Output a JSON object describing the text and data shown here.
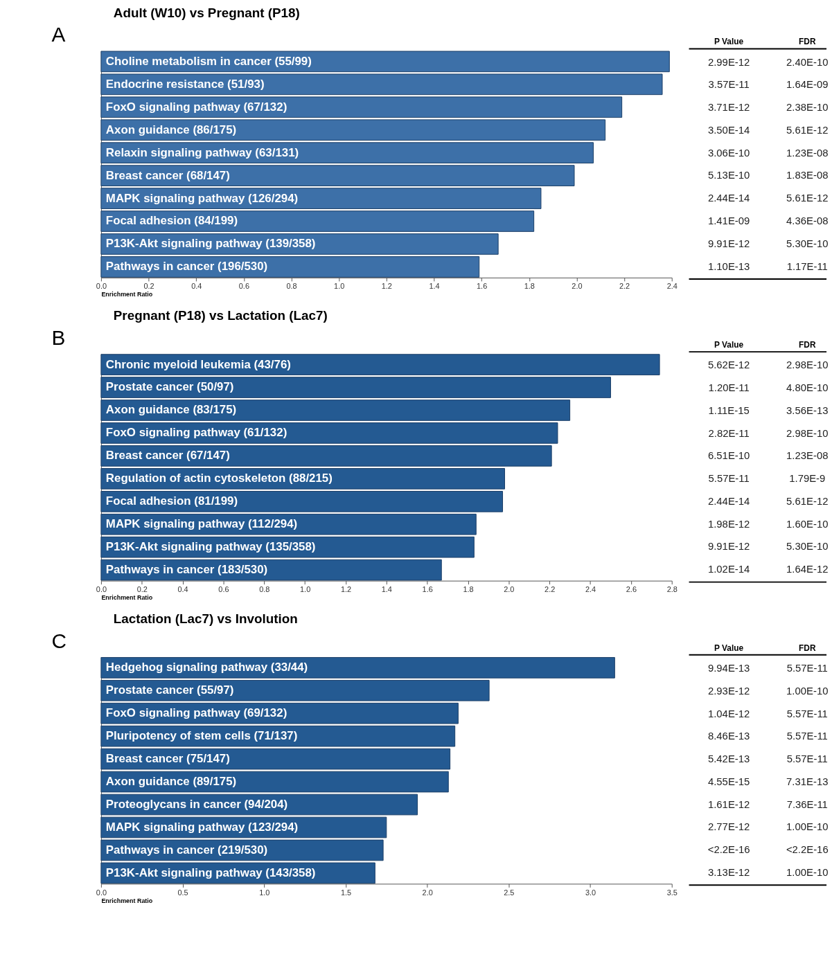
{
  "chart_data": [
    {
      "type": "bar",
      "orientation": "horizontal",
      "title": "Adult (W10) vs Pregnant (P18)",
      "xlabel": "Enrichment Ratio",
      "color": "#3d70a8",
      "tick_labels": "x",
      "grid": false,
      "categories": [
        "Choline metabolism in cancer (55/99)",
        "Endocrine resistance (51/93)",
        "FoxO signaling pathway (67/132)",
        "Axon guidance (86/175)",
        "Relaxin signaling pathway (63/131)",
        "Breast cancer (68/147)",
        "MAPK signaling pathway (126/294)",
        "Focal adhesion (84/199)",
        "P13K-Akt signaling pathway (139/358)",
        "Pathways in cancer (196/530)"
      ],
      "values": [
        2.39,
        2.36,
        2.19,
        2.12,
        2.07,
        1.99,
        1.85,
        1.82,
        1.67,
        1.59
      ],
      "xlim": [
        0,
        2.4
      ],
      "xticks": [
        {
          "value": 0,
          "label": "0.0"
        },
        {
          "value": 0.2,
          "label": "0.2"
        },
        {
          "value": 0.4,
          "label": "0.4"
        },
        {
          "value": 0.6,
          "label": "0.6"
        },
        {
          "value": 0.8,
          "label": "0.8"
        },
        {
          "value": 1,
          "label": "1.0"
        },
        {
          "value": 1.2,
          "label": "1.2"
        },
        {
          "value": 1.4,
          "label": "1.4"
        },
        {
          "value": 1.6,
          "label": "1.6"
        },
        {
          "value": 1.8,
          "label": "1.8"
        },
        {
          "value": 2,
          "label": "2.0"
        },
        {
          "value": 2.2,
          "label": "2.2"
        },
        {
          "value": 2.4,
          "label": "2.4"
        }
      ],
      "annotations": [
        "A",
        "P Value",
        "FDR",
        "2.99E-12",
        "2.40E-10",
        "3.57E-11",
        "1.64E-09",
        "3.71E-12",
        "2.38E-10",
        "3.50E-14",
        "5.61E-12",
        "3.06E-10",
        "1.23E-08",
        "5.13E-10",
        "1.83E-08",
        "2.44E-14",
        "5.61E-12",
        "1.41E-09",
        "4.36E-08",
        "9.91E-12",
        "5.30E-10",
        "1.10E-13",
        "1.17E-11"
      ]
    },
    {
      "type": "bar",
      "orientation": "horizontal",
      "title": "Pregnant (P18) vs Lactation (Lac7)",
      "xlabel": "Enrichment Ratio",
      "color": "#245a92",
      "tick_labels": "x",
      "grid": false,
      "categories": [
        "Chronic myeloid leukemia (43/76)",
        "Prostate cancer (50/97)",
        "Axon guidance (83/175)",
        "FoxO signaling pathway (61/132)",
        "Breast cancer (67/147)",
        "Regulation of actin cytoskeleton (88/215)",
        "Focal adhesion (81/199)",
        "MAPK signaling pathway (112/294)",
        "P13K-Akt signaling pathway (135/358)",
        "Pathways in cancer (183/530)"
      ],
      "values": [
        2.74,
        2.5,
        2.3,
        2.24,
        2.21,
        1.98,
        1.97,
        1.84,
        1.83,
        1.67
      ],
      "xlim": [
        0,
        2.8
      ],
      "xticks": [
        {
          "value": 0,
          "label": "0.0"
        },
        {
          "value": 0.2,
          "label": "0.2"
        },
        {
          "value": 0.4,
          "label": "0.4"
        },
        {
          "value": 0.6,
          "label": "0.6"
        },
        {
          "value": 0.8,
          "label": "0.8"
        },
        {
          "value": 1,
          "label": "1.0"
        },
        {
          "value": 1.2,
          "label": "1.2"
        },
        {
          "value": 1.4,
          "label": "1.4"
        },
        {
          "value": 1.6,
          "label": "1.6"
        },
        {
          "value": 1.8,
          "label": "1.8"
        },
        {
          "value": 2,
          "label": "2.0"
        },
        {
          "value": 2.2,
          "label": "2.2"
        },
        {
          "value": 2.4,
          "label": "2.4"
        },
        {
          "value": 2.6,
          "label": "2.6"
        },
        {
          "value": 2.8,
          "label": "2.8"
        }
      ],
      "annotations": [
        "B",
        "P Value",
        "FDR",
        "5.62E-12",
        "2.98E-10",
        "1.20E-11",
        "4.80E-10",
        "1.11E-15",
        "3.56E-13",
        "2.82E-11",
        "2.98E-10",
        "6.51E-10",
        "1.23E-08",
        "5.57E-11",
        "1.79E-9",
        "2.44E-14",
        "5.61E-12",
        "1.98E-12",
        "1.60E-10",
        "9.91E-12",
        "5.30E-10",
        "1.02E-14",
        "1.64E-12"
      ]
    },
    {
      "type": "bar",
      "orientation": "horizontal",
      "title": "Lactation (Lac7) vs Involution",
      "xlabel": "Enrichment Ratio",
      "color": "#245a92",
      "tick_labels": "x",
      "grid": false,
      "categories": [
        "Hedgehog signaling pathway (33/44)",
        "Prostate cancer (55/97)",
        "FoxO signaling pathway (69/132)",
        "Pluripotency of stem cells (71/137)",
        "Breast cancer (75/147)",
        "Axon guidance (89/175)",
        "Proteoglycans in cancer (94/204)",
        "MAPK signaling pathway (123/294)",
        "Pathways in cancer (219/530)",
        "P13K-Akt signaling pathway (143/358)"
      ],
      "values": [
        3.15,
        2.38,
        2.19,
        2.17,
        2.14,
        2.13,
        1.94,
        1.75,
        1.73,
        1.68
      ],
      "xlim": [
        0,
        3.5
      ],
      "xticks": [
        {
          "value": 0,
          "label": "0.0"
        },
        {
          "value": 0.5,
          "label": "0.5"
        },
        {
          "value": 1,
          "label": "1.0"
        },
        {
          "value": 1.5,
          "label": "1.5"
        },
        {
          "value": 2,
          "label": "2.0"
        },
        {
          "value": 2.5,
          "label": "2.5"
        },
        {
          "value": 3,
          "label": "3.0"
        },
        {
          "value": 3.5,
          "label": "3.5"
        }
      ],
      "annotations": [
        "C",
        "P Value",
        "FDR",
        "9.94E-13",
        "5.57E-11",
        "2.93E-12",
        "1.00E-10",
        "1.04E-12",
        "5.57E-11",
        "8.46E-13",
        "5.57E-11",
        "5.42E-13",
        "5.57E-11",
        "4.55E-15",
        "7.31E-13",
        "1.61E-12",
        "7.36E-11",
        "2.77E-12",
        "1.00E-10",
        "<2.2E-16",
        "<2.2E-16",
        "3.13E-12",
        "1.00E-10"
      ]
    }
  ]
}
